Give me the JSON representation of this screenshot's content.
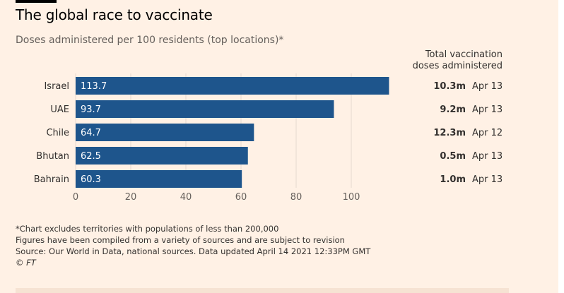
{
  "header": {
    "title": "The global race to vaccinate",
    "subtitle": "Doses administered per 100 residents (top locations)*"
  },
  "table_header": {
    "line1": "Total vaccination",
    "line2": "doses administered"
  },
  "footnotes": {
    "line1": "*Chart excludes territories with populations of less than 200,000",
    "line2": "Figures have been compiled from a variety of sources and are subject to revision",
    "line3": "Source: Our World in Data, national sources. Data updated April 14 2021 12:33PM GMT",
    "copyright": "© FT"
  },
  "colors": {
    "background": "#fff1e5",
    "bar": "#1e558c",
    "grid": "#e6d9ce",
    "text": "#33302e"
  },
  "chart_data": {
    "type": "bar",
    "orientation": "horizontal",
    "title": "The global race to vaccinate",
    "subtitle": "Doses administered per 100 residents (top locations)*",
    "categories": [
      "Israel",
      "UAE",
      "Chile",
      "Bhutan",
      "Bahrain"
    ],
    "values": [
      113.7,
      93.7,
      64.7,
      62.5,
      60.3
    ],
    "value_labels": [
      "113.7",
      "93.7",
      "64.7",
      "62.5",
      "60.3"
    ],
    "xlim": [
      0,
      115
    ],
    "xticks": [
      0,
      20,
      40,
      60,
      80,
      100
    ],
    "grid": true,
    "total_doses": [
      "10.3m",
      "9.2m",
      "12.3m",
      "0.5m",
      "1.0m"
    ],
    "dates": [
      "Apr 13",
      "Apr 13",
      "Apr 12",
      "Apr 13",
      "Apr 13"
    ]
  }
}
